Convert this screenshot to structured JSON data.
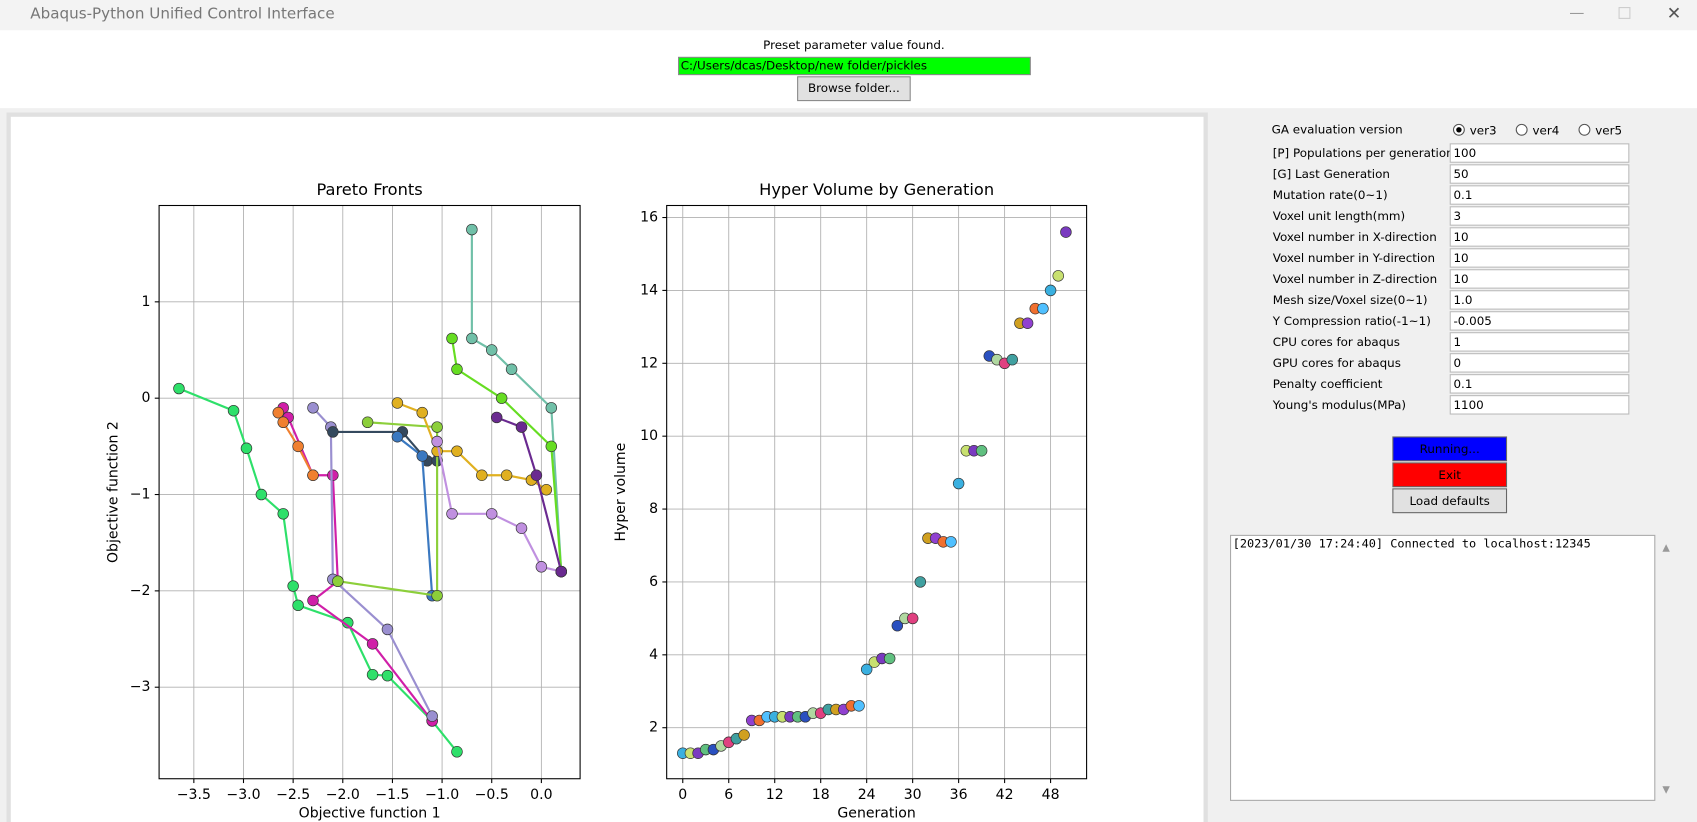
{
  "window": {
    "title": "Abaqus-Python Unified Control Interface"
  },
  "header": {
    "status": "Preset parameter value found.",
    "path": "C:/Users/dcas/Desktop/new folder/pickles",
    "browse_button": "Browse folder..."
  },
  "chart_data": [
    {
      "type": "line",
      "title": "Pareto Fronts",
      "x_label": "Objective function 1",
      "y_label": "Objective function 2",
      "grid": true,
      "xlim": [
        -3.85,
        0.39
      ],
      "ylim": [
        -3.95,
        2.0
      ],
      "xticks": [
        {
          "value": -3.5,
          "label": "−3.5"
        },
        {
          "value": -3.0,
          "label": "−3.0"
        },
        {
          "value": -2.5,
          "label": "−2.5"
        },
        {
          "value": -2.0,
          "label": "−2.0"
        },
        {
          "value": -1.5,
          "label": "−1.5"
        },
        {
          "value": -1.0,
          "label": "−1.0"
        },
        {
          "value": -0.5,
          "label": "−0.5"
        },
        {
          "value": 0.0,
          "label": "0.0"
        }
      ],
      "yticks": [
        {
          "value": -3,
          "label": "−3"
        },
        {
          "value": -2,
          "label": "−2"
        },
        {
          "value": -1,
          "label": "−1"
        },
        0,
        1
      ],
      "series": [
        {
          "color": "#2ee06a",
          "x": [
            -3.65,
            -3.1,
            -2.97,
            -2.82,
            -2.6,
            -2.5,
            -2.45,
            -1.95,
            -1.7,
            -1.55,
            -1.1,
            -0.85
          ],
          "y": [
            0.1,
            -0.13,
            -0.52,
            -1.0,
            -1.2,
            -1.95,
            -2.15,
            -2.33,
            -2.87,
            -2.88,
            -3.35,
            -3.67
          ]
        },
        {
          "color": "#d01fa8",
          "x": [
            -2.6,
            -2.55,
            -2.3,
            -2.1,
            -2.05,
            -2.3,
            -1.7,
            -1.1
          ],
          "y": [
            -0.1,
            -0.2,
            -0.8,
            -0.8,
            -1.9,
            -2.1,
            -2.55,
            -3.35
          ]
        },
        {
          "color": "#9a8fd0",
          "x": [
            -2.3,
            -2.12,
            -2.1,
            -1.55,
            -1.1
          ],
          "y": [
            -0.1,
            -0.3,
            -1.88,
            -2.4,
            -3.3
          ]
        },
        {
          "color": "#f08030",
          "x": [
            -2.65,
            -2.6,
            -2.45,
            -2.3
          ],
          "y": [
            -0.15,
            -0.25,
            -0.5,
            -0.8
          ]
        },
        {
          "color": "#34495e",
          "x": [
            -2.1,
            -1.4,
            -1.15,
            -1.05
          ],
          "y": [
            -0.35,
            -0.35,
            -0.65,
            -0.65
          ]
        },
        {
          "color": "#3a78c0",
          "x": [
            -1.45,
            -1.2,
            -1.1
          ],
          "y": [
            -0.4,
            -0.6,
            -2.05
          ]
        },
        {
          "color": "#8ccf3a",
          "x": [
            -1.75,
            -1.05,
            -1.05,
            -2.05
          ],
          "y": [
            -0.25,
            -0.3,
            -2.05,
            -1.9
          ]
        },
        {
          "color": "#70c0a8",
          "x": [
            -0.7,
            -0.7,
            -0.5,
            -0.3,
            0.1,
            0.2
          ],
          "y": [
            1.75,
            0.62,
            0.5,
            0.3,
            -0.1,
            -1.8
          ]
        },
        {
          "color": "#66dd22",
          "x": [
            -0.9,
            -0.85,
            -0.4,
            0.1,
            0.2
          ],
          "y": [
            0.62,
            0.3,
            0.0,
            -0.5,
            -1.8
          ]
        },
        {
          "color": "#e0b020",
          "x": [
            -1.45,
            -1.2,
            -1.05,
            -0.85,
            -0.6,
            -0.35,
            -0.1,
            0.05
          ],
          "y": [
            -0.05,
            -0.15,
            -0.55,
            -0.55,
            -0.8,
            -0.8,
            -0.85,
            -0.95
          ]
        },
        {
          "color": "#c090e0",
          "x": [
            -1.05,
            -0.9,
            -0.5,
            -0.2,
            0.0,
            0.2
          ],
          "y": [
            -0.45,
            -1.2,
            -1.2,
            -1.35,
            -1.75,
            -1.8
          ]
        },
        {
          "color": "#6a2a90",
          "x": [
            -0.45,
            -0.2,
            -0.05,
            0.2
          ],
          "y": [
            -0.2,
            -0.3,
            -0.8,
            -1.8
          ]
        }
      ]
    },
    {
      "type": "scatter",
      "title": "Hyper Volume by Generation",
      "x_label": "Generation",
      "y_label": "Hyper volume",
      "grid": true,
      "xlim": [
        -2.1,
        52.7
      ],
      "ylim": [
        0.6,
        16.33
      ],
      "xticks": [
        0,
        6,
        12,
        18,
        24,
        30,
        36,
        42,
        48
      ],
      "yticks": [
        2,
        4,
        6,
        8,
        10,
        12,
        14,
        16
      ],
      "marker_colors": [
        "#3ab0e0",
        "#c8e070",
        "#7a3ac0",
        "#60c080",
        "#2a50c0",
        "#b0d8a0",
        "#e04080",
        "#40a0a0",
        "#d0a020",
        "#9040d0",
        "#f07030",
        "#50c0ff"
      ],
      "x": [
        0,
        1,
        2,
        3,
        4,
        5,
        6,
        7,
        8,
        9,
        10,
        11,
        12,
        13,
        14,
        15,
        16,
        17,
        18,
        19,
        20,
        21,
        22,
        23,
        24,
        25,
        26,
        27,
        28,
        29,
        30,
        31,
        32,
        33,
        34,
        35,
        36,
        37,
        38,
        39,
        40,
        41,
        42,
        43,
        44,
        45,
        46,
        47,
        48,
        49,
        50
      ],
      "values": [
        1.3,
        1.3,
        1.3,
        1.4,
        1.4,
        1.5,
        1.6,
        1.7,
        1.8,
        2.2,
        2.2,
        2.3,
        2.3,
        2.3,
        2.3,
        2.3,
        2.3,
        2.4,
        2.4,
        2.5,
        2.5,
        2.5,
        2.6,
        2.6,
        3.6,
        3.8,
        3.9,
        3.9,
        4.8,
        5.0,
        5.0,
        6.0,
        7.2,
        7.2,
        7.1,
        7.1,
        8.7,
        9.6,
        9.6,
        9.6,
        12.2,
        12.1,
        12.0,
        12.1,
        13.1,
        13.1,
        13.5,
        13.5,
        14.0,
        14.4,
        15.6
      ]
    }
  ],
  "settings": {
    "version_label": "GA evaluation version",
    "versions": [
      "ver3",
      "ver4",
      "ver5"
    ],
    "selected_version": "ver3",
    "fields": [
      {
        "label": "[P] Populations per generation",
        "value": "100"
      },
      {
        "label": "[G] Last Generation",
        "value": "50"
      },
      {
        "label": "Mutation rate(0~1)",
        "value": "0.1"
      },
      {
        "label": "Voxel unit length(mm)",
        "value": "3"
      },
      {
        "label": "Voxel number in X-direction",
        "value": "10"
      },
      {
        "label": "Voxel number in Y-direction",
        "value": "10"
      },
      {
        "label": "Voxel number in Z-direction",
        "value": "10"
      },
      {
        "label": "Mesh size/Voxel size(0~1)",
        "value": "1.0"
      },
      {
        "label": "Y Compression ratio(-1~1)",
        "value": "-0.005"
      },
      {
        "label": "CPU cores for abaqus",
        "value": "1"
      },
      {
        "label": "GPU cores for abaqus",
        "value": "0"
      },
      {
        "label": "Penalty coefficient",
        "value": "0.1"
      },
      {
        "label": "Young's modulus(MPa)",
        "value": "1100"
      }
    ]
  },
  "buttons": [
    "Running...",
    "Exit",
    "Load defaults"
  ],
  "log": [
    "[2023/01/30 17:24:40] Connected to localhost:12345"
  ]
}
